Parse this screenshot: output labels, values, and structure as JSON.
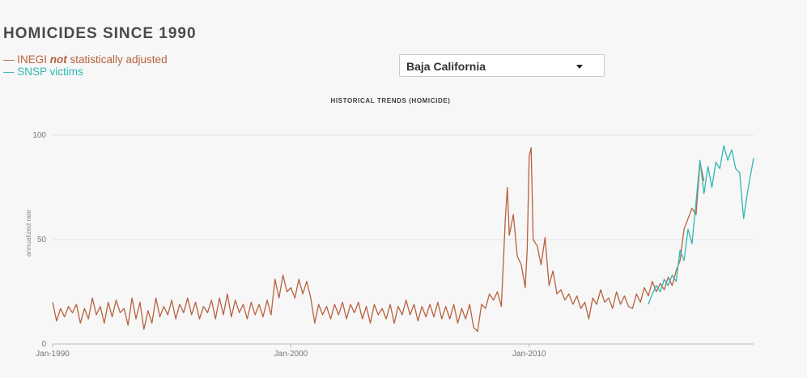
{
  "page": {
    "title": "HOMICIDES SINCE 1990",
    "legend": {
      "inegi_prefix": "— INEGI ",
      "inegi_em": "not",
      "inegi_suffix": " statistically adjusted",
      "snsp": "— SNSP victims"
    },
    "state_select": {
      "selected": "Baja California"
    }
  },
  "colors": {
    "inegi": "#b8613e",
    "snsp": "#2fb7b5",
    "grid": "#e2e2e2"
  },
  "chart_data": {
    "type": "line",
    "title": "HISTORICAL TRENDS (HOMICIDE)",
    "ylabel": "annualized rate",
    "ylim": [
      0,
      100
    ],
    "yticks": [
      0,
      50,
      100
    ],
    "xlim": [
      "1990-01",
      "2019-06"
    ],
    "xticks": [
      {
        "date": "1990-01",
        "label": "Jan-1990"
      },
      {
        "date": "2000-01",
        "label": "Jan-2000"
      },
      {
        "date": "2010-01",
        "label": "Jan-2010"
      }
    ],
    "grid": true,
    "series": [
      {
        "name": "INEGI not statistically adjusted",
        "key": "inegi",
        "points": [
          [
            "1990-01",
            20
          ],
          [
            "1990-03",
            11
          ],
          [
            "1990-05",
            17
          ],
          [
            "1990-07",
            13
          ],
          [
            "1990-09",
            18
          ],
          [
            "1990-11",
            15
          ],
          [
            "1991-01",
            19
          ],
          [
            "1991-03",
            10
          ],
          [
            "1991-05",
            17
          ],
          [
            "1991-07",
            12
          ],
          [
            "1991-09",
            22
          ],
          [
            "1991-11",
            14
          ],
          [
            "1992-01",
            18
          ],
          [
            "1992-03",
            10
          ],
          [
            "1992-05",
            20
          ],
          [
            "1992-07",
            13
          ],
          [
            "1992-09",
            21
          ],
          [
            "1992-11",
            15
          ],
          [
            "1993-01",
            17
          ],
          [
            "1993-03",
            9
          ],
          [
            "1993-05",
            22
          ],
          [
            "1993-07",
            12
          ],
          [
            "1993-09",
            20
          ],
          [
            "1993-11",
            7
          ],
          [
            "1994-01",
            16
          ],
          [
            "1994-03",
            10
          ],
          [
            "1994-05",
            22
          ],
          [
            "1994-07",
            13
          ],
          [
            "1994-09",
            18
          ],
          [
            "1994-11",
            14
          ],
          [
            "1995-01",
            21
          ],
          [
            "1995-03",
            12
          ],
          [
            "1995-05",
            19
          ],
          [
            "1995-07",
            15
          ],
          [
            "1995-09",
            22
          ],
          [
            "1995-11",
            14
          ],
          [
            "1996-01",
            20
          ],
          [
            "1996-03",
            12
          ],
          [
            "1996-05",
            18
          ],
          [
            "1996-07",
            15
          ],
          [
            "1996-09",
            21
          ],
          [
            "1996-11",
            12
          ],
          [
            "1997-01",
            22
          ],
          [
            "1997-03",
            14
          ],
          [
            "1997-05",
            24
          ],
          [
            "1997-07",
            13
          ],
          [
            "1997-09",
            21
          ],
          [
            "1997-11",
            15
          ],
          [
            "1998-01",
            19
          ],
          [
            "1998-03",
            12
          ],
          [
            "1998-05",
            20
          ],
          [
            "1998-07",
            14
          ],
          [
            "1998-09",
            19
          ],
          [
            "1998-11",
            13
          ],
          [
            "1999-01",
            21
          ],
          [
            "1999-03",
            14
          ],
          [
            "1999-05",
            31
          ],
          [
            "1999-07",
            22
          ],
          [
            "1999-09",
            33
          ],
          [
            "1999-11",
            25
          ],
          [
            "2000-01",
            27
          ],
          [
            "2000-03",
            22
          ],
          [
            "2000-05",
            31
          ],
          [
            "2000-07",
            24
          ],
          [
            "2000-09",
            30
          ],
          [
            "2000-11",
            22
          ],
          [
            "2001-01",
            10
          ],
          [
            "2001-03",
            19
          ],
          [
            "2001-05",
            14
          ],
          [
            "2001-07",
            18
          ],
          [
            "2001-09",
            12
          ],
          [
            "2001-11",
            19
          ],
          [
            "2002-01",
            14
          ],
          [
            "2002-03",
            20
          ],
          [
            "2002-05",
            12
          ],
          [
            "2002-07",
            19
          ],
          [
            "2002-09",
            15
          ],
          [
            "2002-11",
            20
          ],
          [
            "2003-01",
            12
          ],
          [
            "2003-03",
            18
          ],
          [
            "2003-05",
            10
          ],
          [
            "2003-07",
            19
          ],
          [
            "2003-09",
            14
          ],
          [
            "2003-11",
            17
          ],
          [
            "2004-01",
            12
          ],
          [
            "2004-03",
            19
          ],
          [
            "2004-05",
            10
          ],
          [
            "2004-07",
            18
          ],
          [
            "2004-09",
            14
          ],
          [
            "2004-11",
            21
          ],
          [
            "2005-01",
            14
          ],
          [
            "2005-03",
            19
          ],
          [
            "2005-05",
            11
          ],
          [
            "2005-07",
            18
          ],
          [
            "2005-09",
            13
          ],
          [
            "2005-11",
            19
          ],
          [
            "2006-01",
            13
          ],
          [
            "2006-03",
            20
          ],
          [
            "2006-05",
            12
          ],
          [
            "2006-07",
            18
          ],
          [
            "2006-09",
            12
          ],
          [
            "2006-11",
            19
          ],
          [
            "2007-01",
            10
          ],
          [
            "2007-03",
            17
          ],
          [
            "2007-05",
            12
          ],
          [
            "2007-07",
            19
          ],
          [
            "2007-09",
            8
          ],
          [
            "2007-11",
            6
          ],
          [
            "2008-01",
            19
          ],
          [
            "2008-03",
            17
          ],
          [
            "2008-05",
            24
          ],
          [
            "2008-07",
            21
          ],
          [
            "2008-09",
            25
          ],
          [
            "2008-11",
            18
          ],
          [
            "2009-01",
            60
          ],
          [
            "2009-02",
            75
          ],
          [
            "2009-03",
            52
          ],
          [
            "2009-05",
            62
          ],
          [
            "2009-07",
            42
          ],
          [
            "2009-09",
            38
          ],
          [
            "2009-11",
            27
          ],
          [
            "2009-12",
            45
          ],
          [
            "2010-01",
            90
          ],
          [
            "2010-02",
            94
          ],
          [
            "2010-03",
            50
          ],
          [
            "2010-05",
            47
          ],
          [
            "2010-07",
            38
          ],
          [
            "2010-09",
            51
          ],
          [
            "2010-11",
            28
          ],
          [
            "2011-01",
            35
          ],
          [
            "2011-03",
            24
          ],
          [
            "2011-05",
            26
          ],
          [
            "2011-07",
            21
          ],
          [
            "2011-09",
            24
          ],
          [
            "2011-11",
            19
          ],
          [
            "2012-01",
            23
          ],
          [
            "2012-03",
            17
          ],
          [
            "2012-05",
            20
          ],
          [
            "2012-07",
            12
          ],
          [
            "2012-09",
            22
          ],
          [
            "2012-11",
            19
          ],
          [
            "2013-01",
            26
          ],
          [
            "2013-03",
            20
          ],
          [
            "2013-05",
            22
          ],
          [
            "2013-07",
            17
          ],
          [
            "2013-09",
            25
          ],
          [
            "2013-11",
            19
          ],
          [
            "2014-01",
            23
          ],
          [
            "2014-03",
            18
          ],
          [
            "2014-05",
            17
          ],
          [
            "2014-07",
            24
          ],
          [
            "2014-09",
            20
          ],
          [
            "2014-11",
            27
          ],
          [
            "2015-01",
            23
          ],
          [
            "2015-03",
            30
          ],
          [
            "2015-05",
            25
          ],
          [
            "2015-07",
            29
          ],
          [
            "2015-09",
            26
          ],
          [
            "2015-11",
            32
          ],
          [
            "2016-01",
            28
          ],
          [
            "2016-03",
            35
          ],
          [
            "2016-05",
            40
          ],
          [
            "2016-07",
            55
          ],
          [
            "2016-09",
            60
          ],
          [
            "2016-11",
            65
          ],
          [
            "2017-01",
            62
          ],
          [
            "2017-03",
            87
          ],
          [
            "2017-05",
            78
          ]
        ]
      },
      {
        "name": "SNSP victims",
        "key": "snsp",
        "points": [
          [
            "2015-01",
            19
          ],
          [
            "2015-03",
            24
          ],
          [
            "2015-05",
            28
          ],
          [
            "2015-07",
            25
          ],
          [
            "2015-09",
            31
          ],
          [
            "2015-11",
            28
          ],
          [
            "2016-01",
            33
          ],
          [
            "2016-03",
            30
          ],
          [
            "2016-05",
            45
          ],
          [
            "2016-07",
            40
          ],
          [
            "2016-09",
            55
          ],
          [
            "2016-11",
            48
          ],
          [
            "2017-01",
            68
          ],
          [
            "2017-03",
            88
          ],
          [
            "2017-05",
            72
          ],
          [
            "2017-07",
            85
          ],
          [
            "2017-09",
            75
          ],
          [
            "2017-11",
            87
          ],
          [
            "2018-01",
            84
          ],
          [
            "2018-03",
            95
          ],
          [
            "2018-05",
            88
          ],
          [
            "2018-07",
            93
          ],
          [
            "2018-09",
            84
          ],
          [
            "2018-11",
            82
          ],
          [
            "2019-01",
            60
          ],
          [
            "2019-03",
            73
          ],
          [
            "2019-06",
            89
          ]
        ]
      }
    ]
  }
}
